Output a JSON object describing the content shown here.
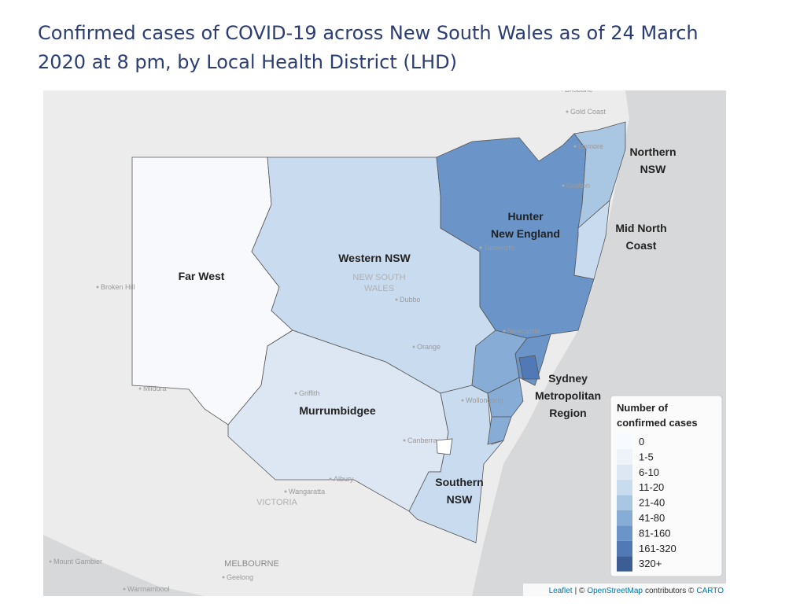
{
  "title_lines": [
    "Confirmed cases of COVID-19 across New South Wales as of 24 March",
    "2020 at 8 pm, by Local Health District (LHD)"
  ],
  "map": {
    "regions": [
      {
        "lines": [
          "Far West"
        ],
        "color": "#f7f9fc"
      },
      {
        "lines": [
          "Western NSW"
        ],
        "color": "#c9dbee"
      },
      {
        "lines": [
          "Murrumbidgee"
        ],
        "color": "#dde6f3"
      },
      {
        "lines": [
          "Southern",
          "NSW"
        ],
        "color": "#c9dbee"
      },
      {
        "lines": [
          "Hunter",
          "New England"
        ],
        "color": "#6b95c8"
      },
      {
        "lines": [
          "Northern",
          "NSW"
        ],
        "color": "#a9c6e3"
      },
      {
        "lines": [
          "Mid North",
          "Coast"
        ],
        "color": "#c9dbee"
      },
      {
        "lines": [
          "Sydney",
          "Metropolitan",
          "Region"
        ],
        "color": "#87acd5"
      }
    ],
    "places": [
      "Brisbane",
      "Gold Coast",
      "Lismore",
      "Grafton",
      "Tamworth",
      "Dubbo",
      "Orange",
      "Newcastle",
      "Broken Hill",
      "Mildura",
      "Griffith",
      "Canberra",
      "Albury",
      "Wollongong",
      "Wangaratta",
      "Mount Gambier",
      "Geelong",
      "Warrnambool"
    ],
    "state_labels": [
      [
        "NEW SOUTH",
        "WALES"
      ],
      [
        "VICTORIA"
      ]
    ],
    "city_labels": [
      "MELBOURNE"
    ],
    "legend": {
      "title_lines": [
        "Number of",
        "confirmed cases"
      ],
      "items": [
        {
          "label": "0",
          "color": "#f7fbff"
        },
        {
          "label": "1-5",
          "color": "#eef3fa"
        },
        {
          "label": "6-10",
          "color": "#dde6f3"
        },
        {
          "label": "11-20",
          "color": "#c9dbee"
        },
        {
          "label": "21-40",
          "color": "#a9c6e3"
        },
        {
          "label": "41-80",
          "color": "#87acd5"
        },
        {
          "label": "81-160",
          "color": "#6b95c8"
        },
        {
          "label": "161-320",
          "color": "#5179b5"
        },
        {
          "label": "320+",
          "color": "#3d5d95"
        }
      ]
    },
    "attribution": {
      "leaflet": "Leaflet",
      "sep": "| ©",
      "osm": "OpenStreetMap",
      "contrib": "contributors ©",
      "carto": "CARTO"
    }
  }
}
